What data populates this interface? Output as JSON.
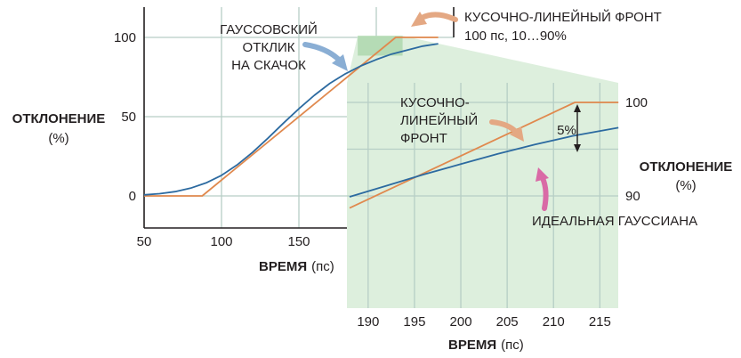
{
  "chart_data": [
    {
      "type": "line",
      "role": "main",
      "xlim": [
        50,
        240
      ],
      "ylim": [
        -20,
        120
      ],
      "x_ticks": [
        "50",
        "100",
        "150"
      ],
      "y_ticks": [
        "0",
        "50",
        "100"
      ],
      "ylabel": "ОТКЛОНЕНИЕ",
      "ylabel_unit": "(%)",
      "xlabel": "ВРЕМЯ",
      "xlabel_unit": "(пс)",
      "grid": true,
      "series": [
        {
          "name": "КУСОЧНО-ЛИНЕЙНЫЙ ФРОНТ",
          "color": "#e0894e",
          "x": [
            50,
            87.5,
            212.5,
            240
          ],
          "y": [
            0,
            0,
            100,
            100
          ]
        },
        {
          "name": "ГАУССОВСКИЙ ОТКЛИК НА СКАЧОК",
          "color": "#2c6aa0",
          "x": [
            50,
            60,
            70,
            80,
            90,
            100,
            110,
            120,
            130,
            140,
            150,
            160,
            170,
            180,
            190,
            200,
            210,
            220,
            230,
            240
          ],
          "y": [
            0.7,
            1.4,
            2.7,
            4.9,
            8.2,
            13,
            19.5,
            27.4,
            36.4,
            45.9,
            55,
            63.5,
            71,
            77,
            82,
            86,
            89.5,
            92,
            94.5,
            96
          ]
        }
      ]
    },
    {
      "type": "line",
      "role": "inset",
      "xlim": [
        188,
        217
      ],
      "ylim": [
        88.5,
        101
      ],
      "x_ticks": [
        "190",
        "195",
        "200",
        "205",
        "210",
        "215"
      ],
      "y_ticks": [
        "90",
        "100"
      ],
      "ylabel": "ОТКЛОНЕНИЕ",
      "ylabel_unit": "(%)",
      "xlabel": "ВРЕМЯ",
      "xlabel_unit": "(пс)",
      "grid": true,
      "series": [
        {
          "name": "КУСОЧНО-ЛИНЕЙНЫЙ ФРОНТ",
          "color": "#e0894e",
          "x": [
            188,
            212.3,
            217
          ],
          "y": [
            88.7,
            100,
            100
          ]
        },
        {
          "name": "ИДЕАЛЬНАЯ ГАУССИАНА",
          "color": "#2c6aa0",
          "x": [
            188,
            192,
            196,
            200,
            204,
            208,
            212,
            217
          ],
          "y": [
            89.9,
            91.1,
            92.3,
            93.4,
            94.5,
            95.5,
            96.4,
            97.3
          ]
        }
      ]
    }
  ],
  "annotations": {
    "gauss_label": [
      "ГАУССОВСКИЙ",
      "ОТКЛИК",
      "НА СКАЧОК"
    ],
    "pwl_title": "КУСОЧНО-ЛИНЕЙНЫЙ ФРОНТ",
    "pwl_sub": "100 пс, 10…90%",
    "inset_pwl_label": [
      "КУСОЧНО-",
      "ЛИНЕЙНЫЙ",
      "ФРОНТ"
    ],
    "ideal_gauss": "ИДЕАЛЬНАЯ ГАУССИАНА",
    "five_percent": "5%"
  },
  "colors": {
    "orange": "#e0894e",
    "blue": "#2c6aa0",
    "grid": "#b6cec5",
    "inset_bg": "#ddefdd",
    "zoom_region": "#b5dbb5",
    "arrow_blue": "#8aaed4",
    "arrow_orange": "#e4a883",
    "arrow_pink": "#d96aa6"
  }
}
